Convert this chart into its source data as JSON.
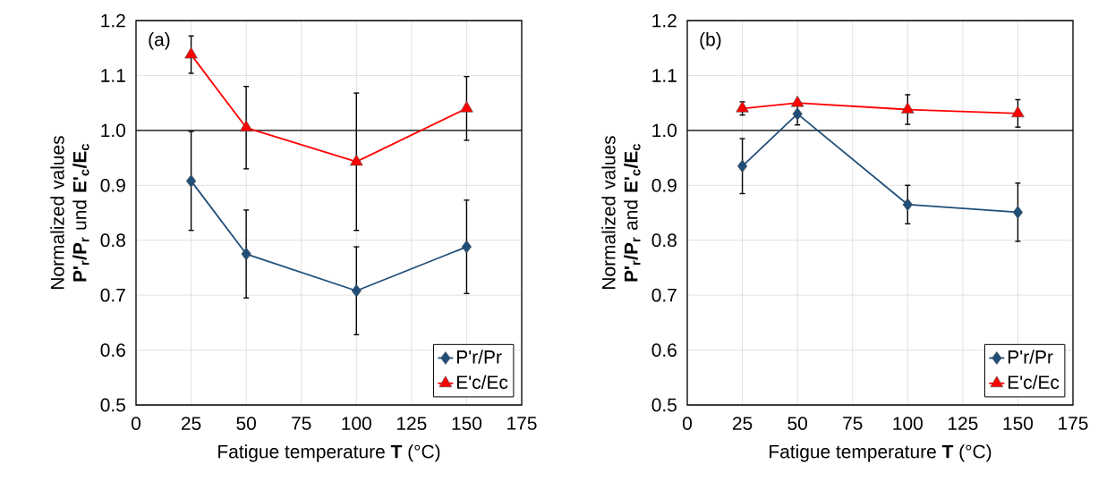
{
  "chart_data": [
    {
      "type": "line",
      "annotations": [
        "(a)"
      ],
      "xlabel": "Fatigue temperature **T** (°C)",
      "ylabel": "Normalized values **P'$_{r}$/P$_{r}$** und **E'$_{c}$/E$_{c}$**",
      "x": [
        25,
        50,
        100,
        150
      ],
      "series": [
        {
          "name": "P'r/Pr",
          "color": "#1f4e79",
          "marker": "diamond",
          "values": [
            0.908,
            0.775,
            0.708,
            0.788
          ],
          "errors": [
            0.09,
            0.08,
            0.08,
            0.085
          ]
        },
        {
          "name": "E'c/Ec",
          "color": "#ff0000",
          "marker": "triangle",
          "values": [
            1.138,
            1.005,
            0.943,
            1.04
          ],
          "errors": [
            0.034,
            0.075,
            0.125,
            0.058
          ]
        }
      ],
      "xlim": [
        0,
        175
      ],
      "xticks": [
        0,
        25,
        50,
        75,
        100,
        125,
        150,
        175
      ],
      "ylim": [
        0.5,
        1.2
      ],
      "yticks": [
        0.5,
        0.6,
        0.7,
        0.8,
        0.9,
        {
          "value": 1.0,
          "label": "1.0"
        },
        1.1,
        1.2
      ],
      "ref_lines": [
        {
          "axis": "y",
          "value": 1.0,
          "color": "#000000"
        }
      ],
      "grid": true,
      "legend": "bottom right",
      "line_style": "solid"
    },
    {
      "type": "line",
      "annotations": [
        "(b)"
      ],
      "xlabel": "Fatigue temperature **T** (°C)",
      "ylabel": "Normalized values **P'$_{r}$/P$_{r}$** and **E'$_{c}$/E$_{c}$**",
      "x": [
        25,
        50,
        100,
        150
      ],
      "series": [
        {
          "name": "P'r/Pr",
          "color": "#1f4e79",
          "marker": "diamond",
          "values": [
            0.935,
            1.03,
            0.865,
            0.851
          ],
          "errors": [
            0.05,
            0.02,
            0.035,
            0.053
          ]
        },
        {
          "name": "E'c/Ec",
          "color": "#ff0000",
          "marker": "triangle",
          "values": [
            1.04,
            1.05,
            1.038,
            1.031
          ],
          "errors": [
            0.012,
            null,
            0.027,
            0.025
          ]
        }
      ],
      "xlim": [
        0,
        175
      ],
      "xticks": [
        0,
        25,
        50,
        75,
        100,
        125,
        150,
        175
      ],
      "ylim": [
        0.5,
        1.2
      ],
      "yticks": [
        0.5,
        0.6,
        0.7,
        0.8,
        0.9,
        {
          "value": 1.0,
          "label": "1.0"
        },
        1.1,
        1.2
      ],
      "ref_lines": [
        {
          "axis": "y",
          "value": 1.0,
          "color": "#000000"
        }
      ],
      "grid": true,
      "legend": "bottom right",
      "line_style": "solid"
    }
  ]
}
